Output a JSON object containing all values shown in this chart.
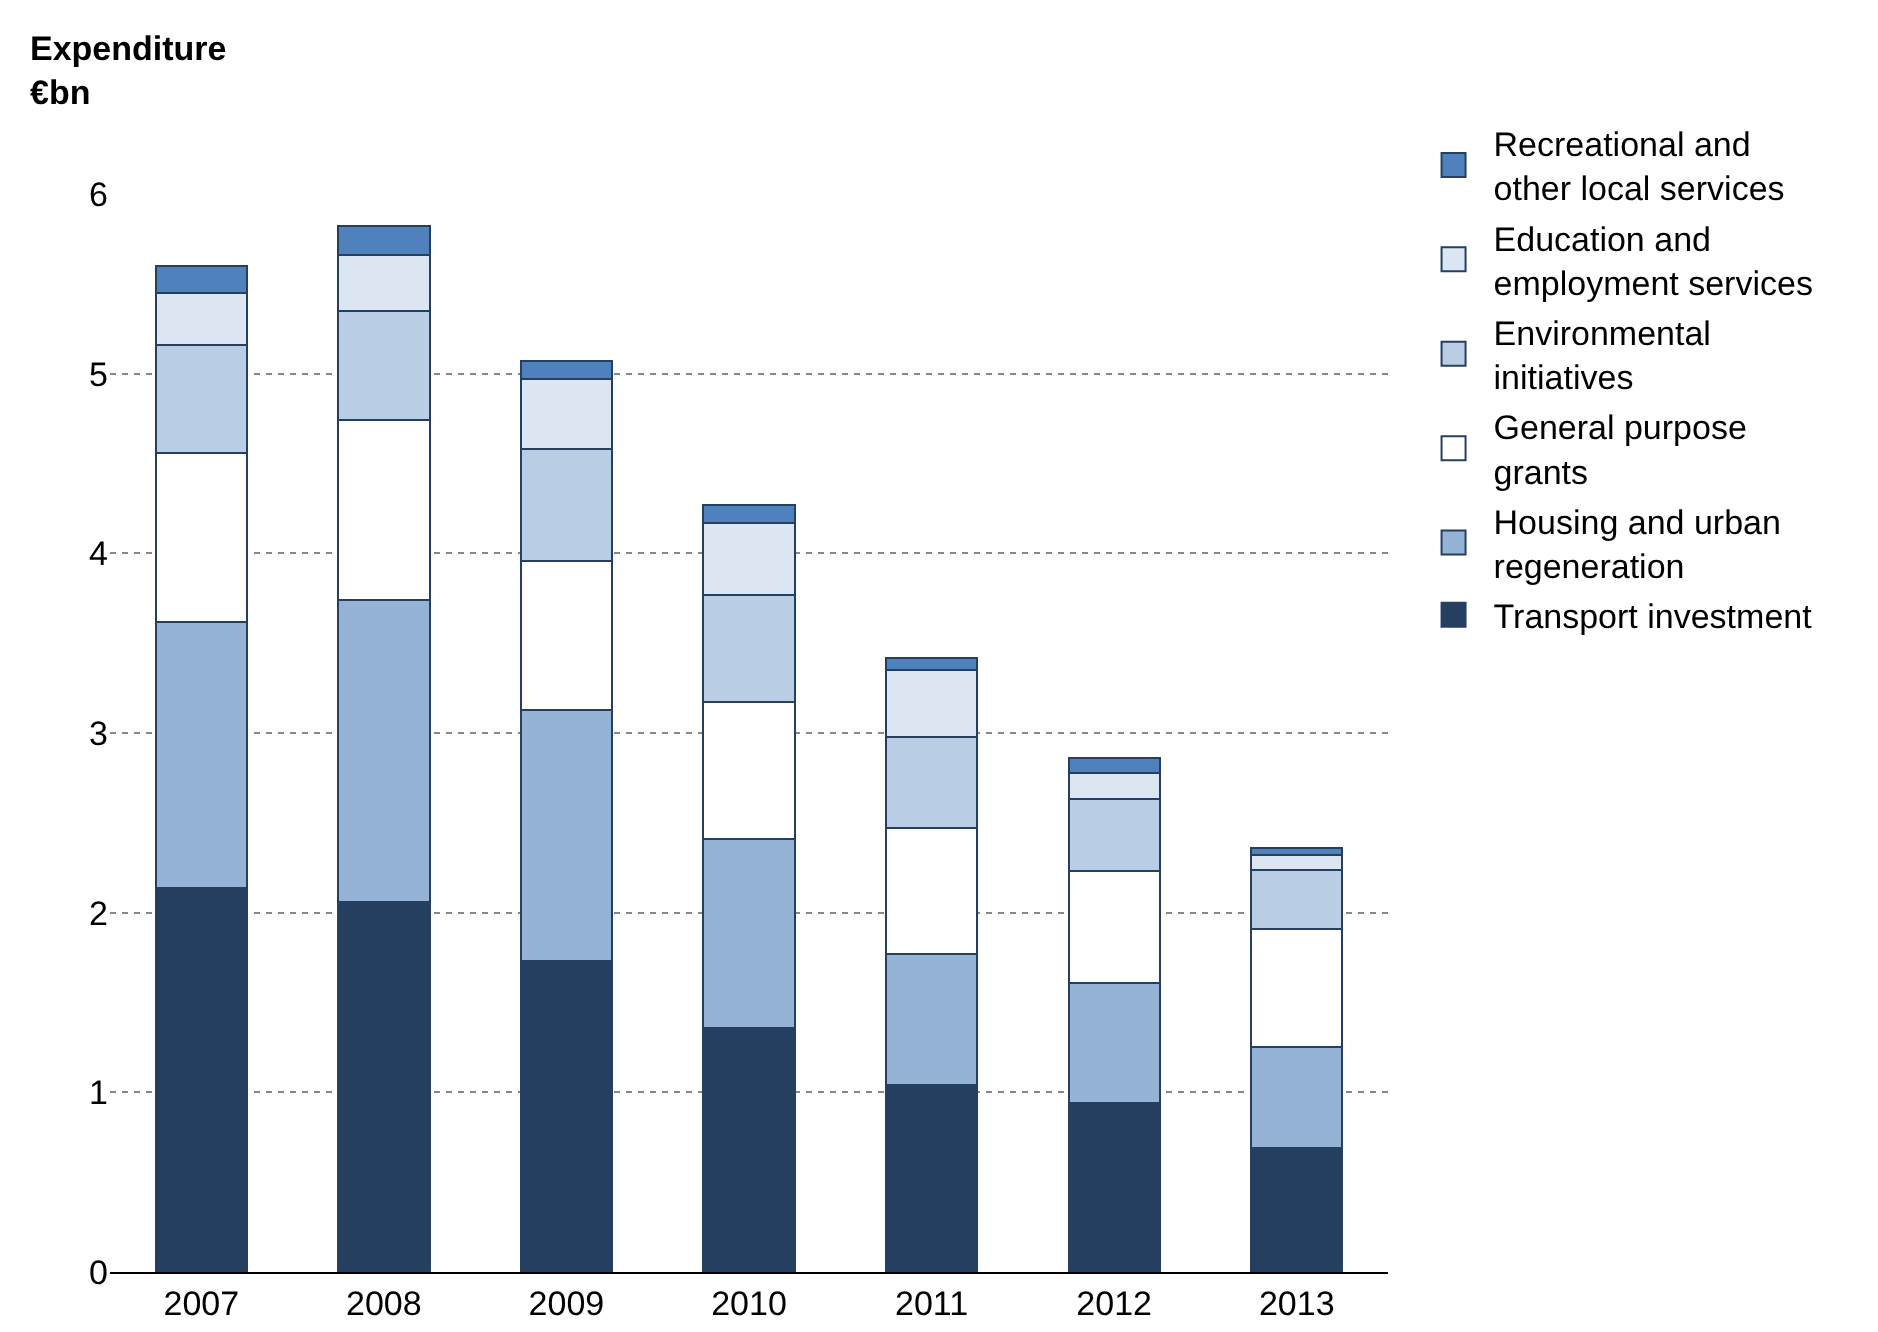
{
  "chart_data": {
    "type": "bar",
    "stacked": true,
    "ylabel": "Expenditure €bn",
    "categories": [
      "2007",
      "2008",
      "2009",
      "2010",
      "2011",
      "2012",
      "2013"
    ],
    "series": [
      {
        "name": "Transport investment",
        "color": "#243f60",
        "values": [
          2.14,
          2.06,
          1.73,
          1.36,
          1.04,
          0.94,
          0.69
        ]
      },
      {
        "name": "Housing and urban regeneration",
        "color": "#95b3d7",
        "values": [
          1.48,
          1.68,
          1.4,
          1.05,
          0.73,
          0.67,
          0.56
        ]
      },
      {
        "name": "General purpose grants",
        "color": "#ffffff",
        "values": [
          0.94,
          1.0,
          0.83,
          0.76,
          0.7,
          0.62,
          0.66
        ]
      },
      {
        "name": "Environmental initiatives",
        "color": "#b9cde5",
        "values": [
          0.6,
          0.61,
          0.62,
          0.6,
          0.51,
          0.4,
          0.33
        ]
      },
      {
        "name": "Education and employment services",
        "color": "#dce6f2",
        "values": [
          0.29,
          0.31,
          0.39,
          0.4,
          0.37,
          0.15,
          0.08
        ]
      },
      {
        "name": "Recreational and other local services",
        "color": "#4f81bd",
        "values": [
          0.15,
          0.16,
          0.1,
          0.1,
          0.07,
          0.08,
          0.04
        ]
      }
    ],
    "ylim": [
      0,
      6
    ],
    "yticks": [
      0,
      1,
      2,
      3,
      4,
      5,
      6
    ],
    "grid": "y",
    "legend": "right"
  }
}
